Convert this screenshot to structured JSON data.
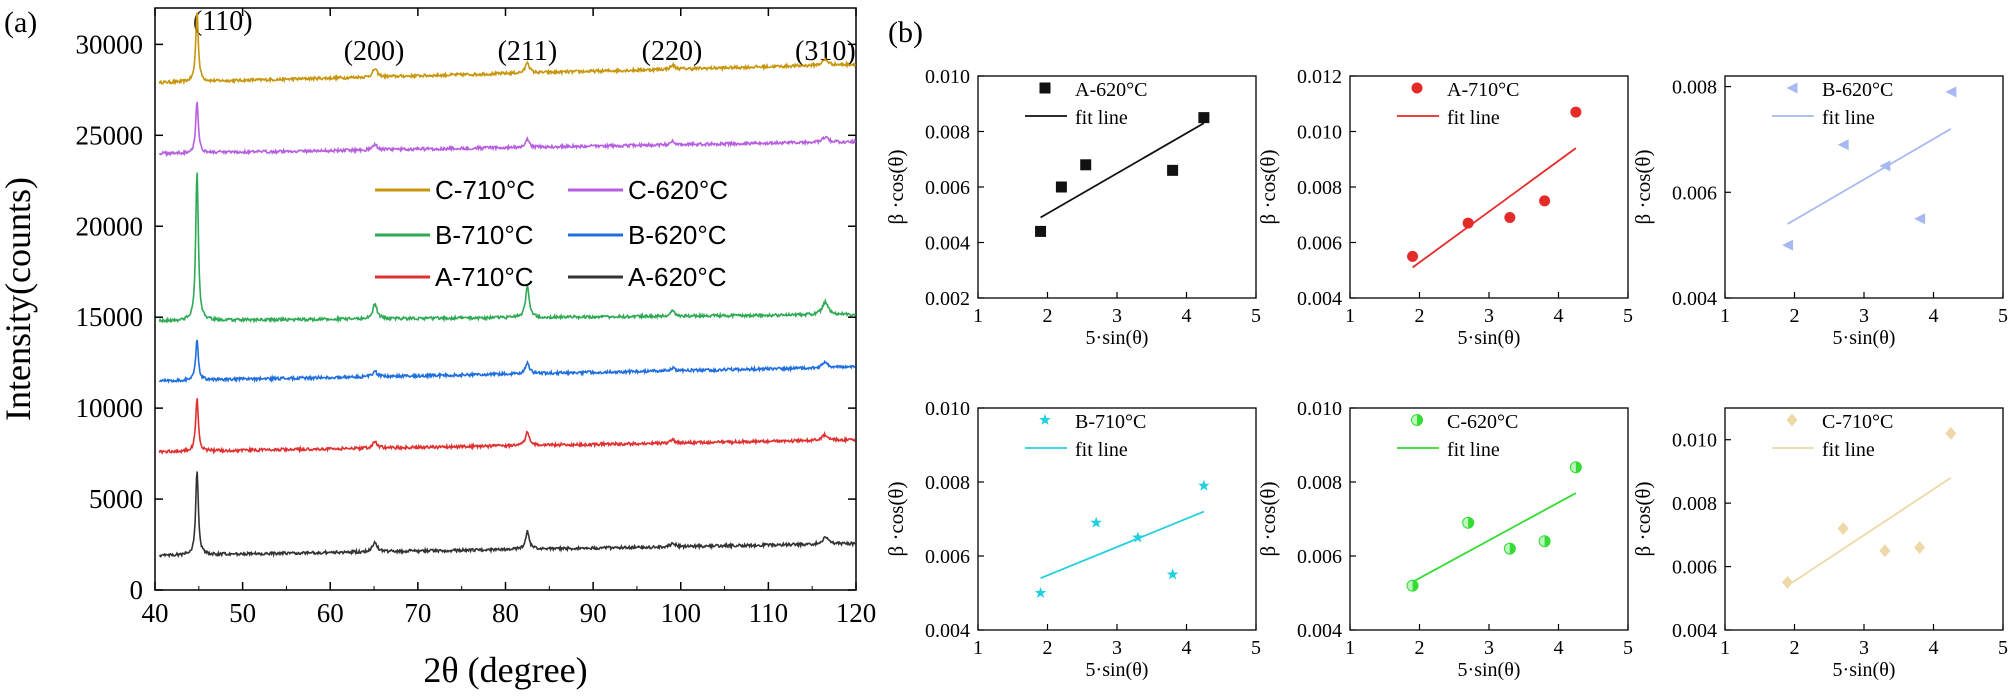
{
  "xrd": {
    "panel_label": "(a)",
    "title": "",
    "type": "line",
    "xlabel": "2θ (degree)",
    "ylabel": "Intensity(counts)",
    "xlim": [
      40,
      120
    ],
    "ylim": [
      0,
      32000
    ],
    "xticks": [
      "40",
      "50",
      "60",
      "70",
      "80",
      "90",
      "100",
      "110",
      "120"
    ],
    "yticks": [
      "0",
      "5000",
      "10000",
      "15000",
      "20000",
      "25000",
      "30000"
    ],
    "peak_labels": [
      {
        "text": "(110)",
        "x": 45
      },
      {
        "text": "(200)",
        "x": 65
      },
      {
        "text": "(211)",
        "x": 82.5
      },
      {
        "text": "(220)",
        "x": 99
      },
      {
        "text": "(310)",
        "x": 116.5
      }
    ],
    "peaks_2theta": [
      44.8,
      65.1,
      82.5,
      99.1,
      116.5
    ],
    "series": [
      {
        "name": "C-710°C",
        "color": "#c8960a",
        "baseline": [
          27900,
          28900
        ],
        "heights": [
          3900,
          450,
          620,
          220,
          300
        ]
      },
      {
        "name": "C-620°C",
        "color": "#b65fe0",
        "baseline": [
          24000,
          24650
        ],
        "heights": [
          2900,
          300,
          420,
          180,
          260
        ]
      },
      {
        "name": "B-710°C",
        "color": "#2eaa55",
        "baseline": [
          14800,
          15150
        ],
        "heights": [
          8300,
          800,
          1750,
          320,
          700
        ]
      },
      {
        "name": "B-620°C",
        "color": "#1f6fe0",
        "baseline": [
          11500,
          12250
        ],
        "heights": [
          2300,
          280,
          650,
          160,
          280
        ]
      },
      {
        "name": "A-710°C",
        "color": "#e03030",
        "baseline": [
          7600,
          8250
        ],
        "heights": [
          3000,
          380,
          800,
          180,
          330
        ]
      },
      {
        "name": "A-620°C",
        "color": "#333333",
        "baseline": [
          1900,
          2550
        ],
        "heights": [
          4700,
          550,
          1000,
          220,
          380
        ]
      }
    ],
    "legend_rows": [
      [
        "C-710°C",
        "C-620°C"
      ],
      [
        "B-710°C",
        "B-620°C"
      ],
      [
        "A-710°C",
        "A-620°C"
      ]
    ]
  },
  "wh": {
    "panel_label": "(b)",
    "xlabel": "5·sin(θ)",
    "ylabel": "β ·cos(θ)",
    "fit_label": "fit line",
    "xticks": [
      "1",
      "2",
      "3",
      "4",
      "5"
    ],
    "xlim": [
      1,
      5
    ]
  },
  "chart_data": [
    {
      "type": "scatter",
      "name": "A-620°C",
      "color": "#111111",
      "marker": "square",
      "ylim": [
        0.002,
        0.01
      ],
      "yticks": [
        "0.002",
        "0.004",
        "0.006",
        "0.008",
        "0.010"
      ],
      "x": [
        1.9,
        2.2,
        2.55,
        3.8,
        4.25
      ],
      "y": [
        0.0044,
        0.006,
        0.0068,
        0.0066,
        0.0085
      ],
      "fit": [
        [
          1.9,
          0.0049
        ],
        [
          4.25,
          0.0083
        ]
      ],
      "legend_pos": "top-right"
    },
    {
      "type": "scatter",
      "name": "A-710°C",
      "color": "#e52a2a",
      "marker": "circle",
      "ylim": [
        0.004,
        0.012
      ],
      "yticks": [
        "0.004",
        "0.006",
        "0.008",
        "0.010",
        "0.012"
      ],
      "x": [
        1.9,
        2.7,
        3.3,
        3.8,
        4.25
      ],
      "y": [
        0.0055,
        0.0067,
        0.0069,
        0.0075,
        0.0107
      ],
      "fit": [
        [
          1.9,
          0.0051
        ],
        [
          4.25,
          0.0094
        ]
      ],
      "legend_pos": "top-right"
    },
    {
      "type": "scatter",
      "name": "B-620°C",
      "color": "#a8b8f0",
      "marker": "triangle-left",
      "ylim": [
        0.004,
        0.0082
      ],
      "yticks": [
        "0.004",
        "0.006",
        "0.008"
      ],
      "x": [
        1.9,
        2.7,
        3.3,
        3.8,
        4.25
      ],
      "y": [
        0.005,
        0.0069,
        0.0065,
        0.0055,
        0.0079
      ],
      "fit": [
        [
          1.9,
          0.0054
        ],
        [
          4.25,
          0.0072
        ]
      ],
      "legend_pos": "top-right"
    },
    {
      "type": "scatter",
      "name": "B-710°C",
      "color": "#22d0e0",
      "marker": "star",
      "ylim": [
        0.004,
        0.01
      ],
      "yticks": [
        "0.004",
        "0.006",
        "0.008",
        "0.010"
      ],
      "x": [
        1.9,
        2.7,
        3.3,
        3.8,
        4.25
      ],
      "y": [
        0.005,
        0.0069,
        0.0065,
        0.0055,
        0.0079
      ],
      "fit": [
        [
          1.9,
          0.0054
        ],
        [
          4.25,
          0.0072
        ]
      ],
      "legend_pos": "top-right"
    },
    {
      "type": "scatter",
      "name": "C-620°C",
      "color": "#33dd33",
      "marker": "half-circle",
      "ylim": [
        0.004,
        0.01
      ],
      "yticks": [
        "0.004",
        "0.006",
        "0.008",
        "0.010"
      ],
      "x": [
        1.9,
        2.7,
        3.3,
        3.8,
        4.25
      ],
      "y": [
        0.0052,
        0.0069,
        0.0062,
        0.0064,
        0.0084
      ],
      "fit": [
        [
          1.9,
          0.0053
        ],
        [
          4.25,
          0.0077
        ]
      ],
      "legend_pos": "top-right"
    },
    {
      "type": "scatter",
      "name": "C-710°C",
      "color": "#efd8a8",
      "marker": "diamond",
      "ylim": [
        0.004,
        0.011
      ],
      "yticks": [
        "0.004",
        "0.006",
        "0.008",
        "0.010"
      ],
      "x": [
        1.9,
        2.7,
        3.3,
        3.8,
        4.25
      ],
      "y": [
        0.0055,
        0.0072,
        0.0065,
        0.0066,
        0.0102
      ],
      "fit": [
        [
          1.9,
          0.0054
        ],
        [
          4.25,
          0.0088
        ]
      ],
      "legend_pos": "top-right"
    }
  ]
}
